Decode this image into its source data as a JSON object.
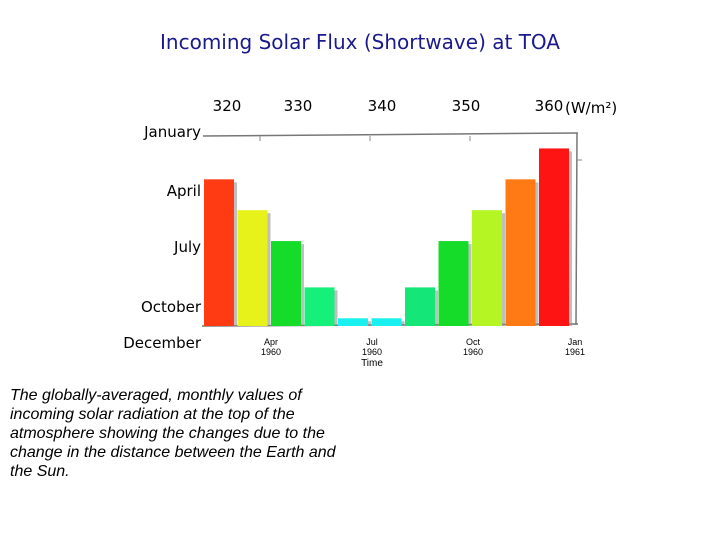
{
  "chart_data": {
    "type": "bar",
    "title": "Incoming Solar Flux (Shortwave) at TOA",
    "unit_label": "(W/m²)",
    "value_ticks": [
      320,
      330,
      340,
      350,
      360
    ],
    "row_labels": [
      "January",
      "April",
      "July",
      "October",
      "December"
    ],
    "time_ticks": [
      {
        "month": "Apr",
        "year": "1960"
      },
      {
        "month": "Jul",
        "year": "1960"
      },
      {
        "month": "Oct",
        "year": "1960"
      },
      {
        "month": "Jan",
        "year": "1961"
      }
    ],
    "time_axis_label": "Time",
    "bars": [
      {
        "value": 346,
        "color": "#ff3b14"
      },
      {
        "value": 344,
        "color": "#e6f219"
      },
      {
        "value": 342,
        "color": "#14dc28"
      },
      {
        "value": 339,
        "color": "#14f07a"
      },
      {
        "value": 337,
        "color": "#19f0f0"
      },
      {
        "value": 337,
        "color": "#19f0f0"
      },
      {
        "value": 339,
        "color": "#14e678"
      },
      {
        "value": 342,
        "color": "#14dc28"
      },
      {
        "value": 344,
        "color": "#b4f523"
      },
      {
        "value": 346,
        "color": "#ff7a14"
      },
      {
        "value": 348,
        "color": "#ff1414"
      }
    ],
    "y_base": 336.5,
    "y_top": 349,
    "grid": false,
    "legend": "none"
  },
  "caption": "The globally-averaged, monthly values of incoming solar radiation at the top of the atmosphere showing the changes due to the change in the distance between the Earth and the Sun."
}
